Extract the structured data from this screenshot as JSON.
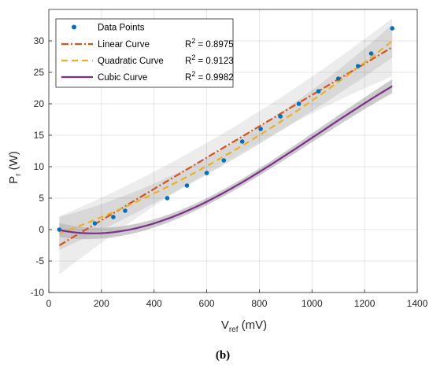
{
  "chart_data": {
    "type": "scatter",
    "xlabel": {
      "main": "V",
      "sub": "ref",
      "unit": " (mV)"
    },
    "ylabel": {
      "main": "P",
      "sub": "r",
      "unit": " (W)"
    },
    "xlim": [
      0,
      1400
    ],
    "ylim": [
      -10,
      35
    ],
    "xticks": [
      0,
      200,
      400,
      600,
      800,
      1000,
      1200,
      1400
    ],
    "yticks": [
      -10,
      -5,
      0,
      5,
      10,
      15,
      20,
      25,
      30
    ],
    "grid": true,
    "legend_position": "top-left",
    "points": {
      "name": "Data Points",
      "color": "#0072BD",
      "x": [
        40,
        175,
        245,
        290,
        450,
        525,
        600,
        665,
        735,
        805,
        880,
        950,
        1025,
        1100,
        1175,
        1225,
        1305
      ],
      "y": [
        0,
        1,
        2,
        3,
        5,
        7,
        9,
        11,
        14,
        16,
        18,
        20,
        22,
        24,
        26,
        28,
        32
      ]
    },
    "series": [
      {
        "name": "Linear Curve",
        "r2_label": "R",
        "r2_sup": "2",
        "r2_value": " = 0.8975",
        "color": "#D95319",
        "dash": "9,3,2,3",
        "kind": "linear",
        "coef": [
          -3.5,
          0.0249
        ]
      },
      {
        "name": "Quadratic Curve",
        "r2_label": "R",
        "r2_sup": "2",
        "r2_value": " = 0.9123",
        "color": "#EDB120",
        "dash": "8,5",
        "kind": "quadratic",
        "coef": [
          -1.2,
          0.0145,
          7.2e-06
        ]
      },
      {
        "name": "Cubic Curve",
        "r2_label": "R",
        "r2_sup": "2",
        "r2_value": " = 0.9982",
        "color": "#7E2F8E",
        "dash": "",
        "kind": "cubic",
        "coef": [
          0.355,
          -0.01182,
          3.855e-05,
          -1.25e-08
        ]
      }
    ]
  },
  "caption": "(b)"
}
